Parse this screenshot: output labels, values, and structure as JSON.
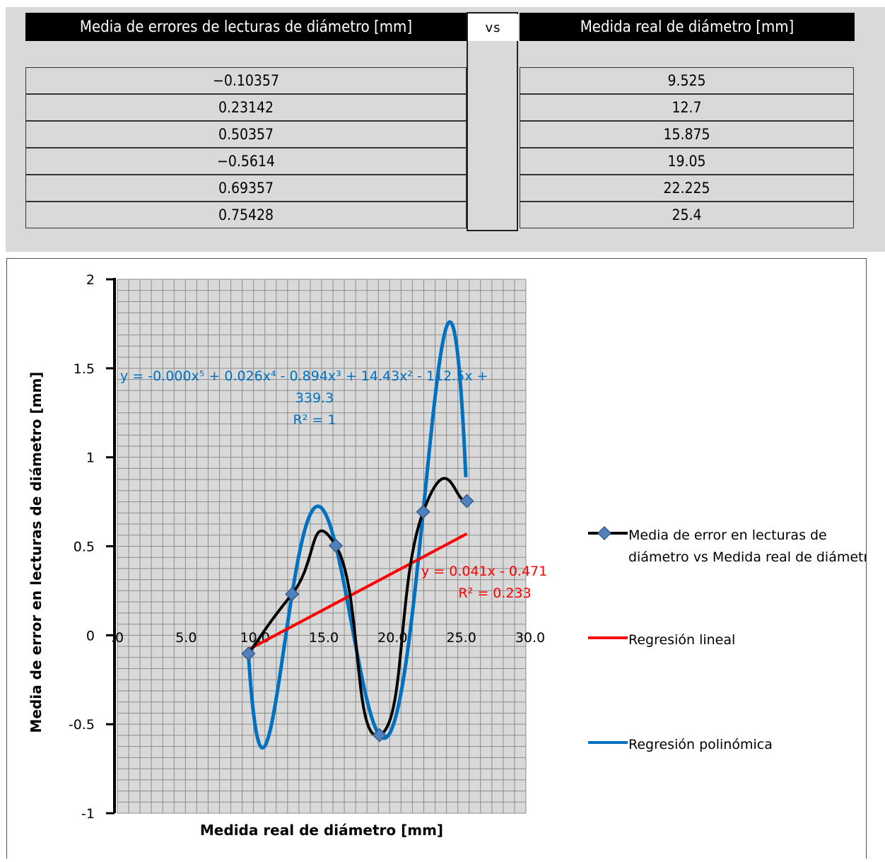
{
  "table": {
    "header_left": "Media de errores de lecturas de diámetro [mm]",
    "header_mid": "vs",
    "header_right": "Medida real de diámetro [mm]",
    "rows": [
      {
        "error": "-0.10357",
        "medida": "9.525"
      },
      {
        "error": "0.23142",
        "medida": "12.7"
      },
      {
        "error": "0.50357",
        "medida": "15.875"
      },
      {
        "error": "-0.5614",
        "medida": "19.05"
      },
      {
        "error": "0.69357",
        "medida": "22.225"
      },
      {
        "error": "0.75428",
        "medida": "25.4"
      }
    ]
  },
  "chart_data": {
    "type": "scatter",
    "xlabel": "Medida real de diámetro [mm]",
    "ylabel": "Media de error en lecturas de diámetro [mm]",
    "xlim": [
      0,
      30
    ],
    "ylim": [
      -1,
      2
    ],
    "x_ticks": [
      ".0",
      "5.0",
      "10.0",
      "15.0",
      "20.0",
      "25.0",
      "30.0"
    ],
    "x_tick_values": [
      0,
      5,
      10,
      15,
      20,
      25,
      30
    ],
    "y_ticks": [
      "2",
      "1.5",
      "1",
      "0.5",
      "0",
      "-0.5",
      "-1"
    ],
    "y_tick_values": [
      2,
      1.5,
      1,
      0.5,
      0,
      -0.5,
      -1
    ],
    "grid": true,
    "legend_position": "right",
    "series": [
      {
        "name": "Media de error en lecturas de diámetro vs Medida real de diámetro",
        "x": [
          9.525,
          12.7,
          15.875,
          19.05,
          22.225,
          25.4
        ],
        "y": [
          -0.10357,
          0.23142,
          0.50357,
          -0.5614,
          0.69357,
          0.75428
        ],
        "color": "#000000",
        "marker": "diamond",
        "marker_color": "#4f81bd"
      },
      {
        "name": "Regresión lineal",
        "slope": 0.041,
        "intercept": -0.471,
        "x_range": [
          9.525,
          25.4
        ],
        "color": "#ff0000",
        "equation": "y = 0.041x - 0.471",
        "r2": "R² = 0.233"
      },
      {
        "name": "Regresión polinómica",
        "color": "#0070c0",
        "equation": "y = -0.000x⁵ + 0.026x⁴ - 0.894x³ + 14.43x² - 112.5x +",
        "equation_line2": "339.3",
        "r2": "R² = 1"
      }
    ]
  }
}
